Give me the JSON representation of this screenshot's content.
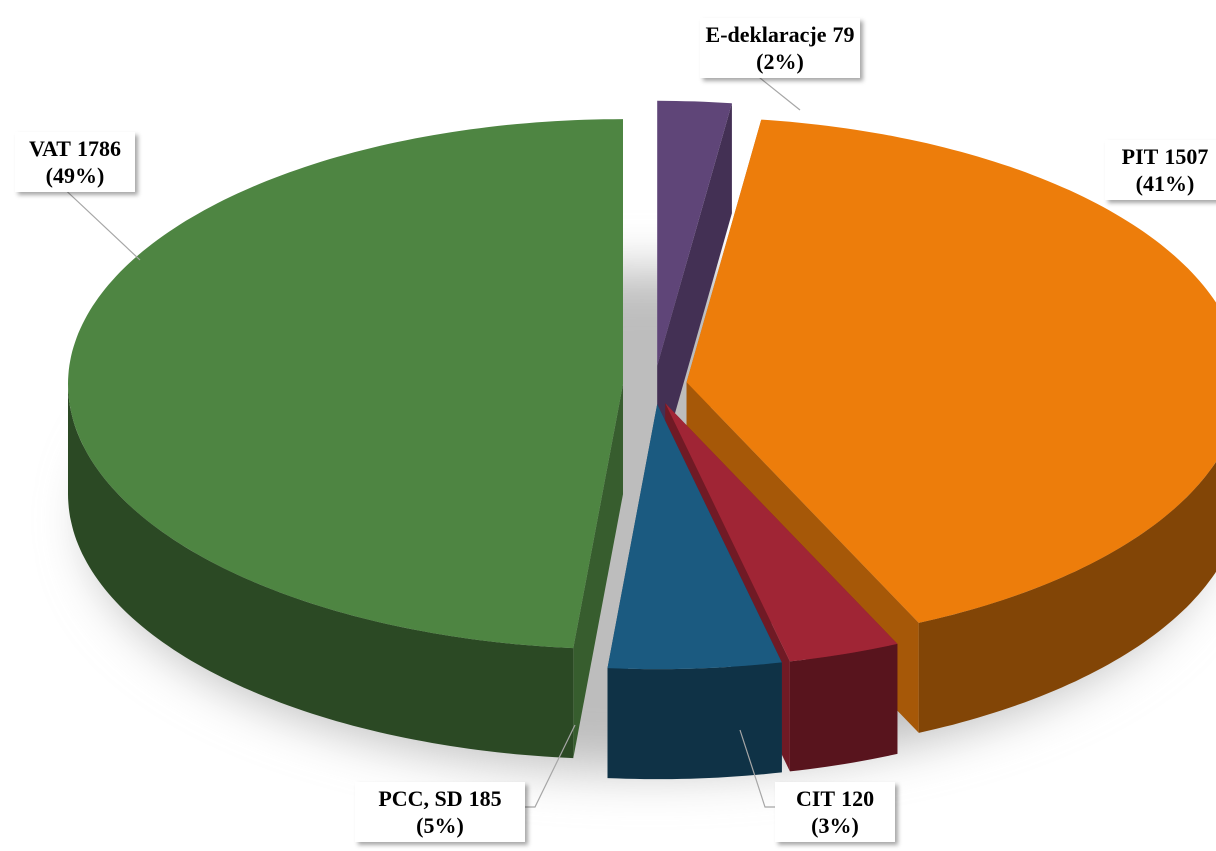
{
  "chart_data": {
    "type": "pie",
    "categories": [
      "E-deklaracje",
      "PIT",
      "CIT",
      "PCC, SD",
      "VAT"
    ],
    "values": [
      79,
      1507,
      120,
      185,
      1786
    ],
    "percent_labels": [
      "(2%)",
      "(41%)",
      "(3%)",
      "(5%)",
      "(49%)"
    ],
    "colors": [
      "#5f4578",
      "#ed7d0b",
      "#a02535",
      "#1b5a80",
      "#4e8542"
    ]
  }
}
